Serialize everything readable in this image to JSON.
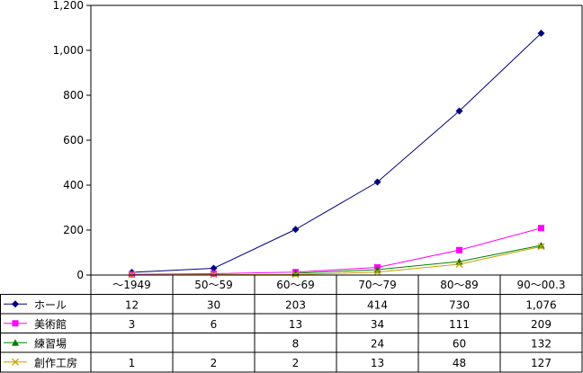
{
  "chart_data": {
    "type": "line",
    "categories": [
      "～1949",
      "50～59",
      "60～69",
      "70～79",
      "80～89",
      "90～00.3"
    ],
    "ylim": [
      0,
      1200
    ],
    "yticks": [
      0,
      200,
      400,
      600,
      800,
      1000,
      1200
    ],
    "ytick_labels": [
      "0",
      "200",
      "400",
      "600",
      "800",
      "1,000",
      "1,200"
    ],
    "grid": false,
    "legend": "data-table-below",
    "series": [
      {
        "name": "ホール",
        "color": "#000080",
        "marker": "diamond",
        "values": [
          12,
          30,
          203,
          414,
          730,
          1076
        ],
        "labels": [
          "12",
          "30",
          "203",
          "414",
          "730",
          "1,076"
        ]
      },
      {
        "name": "美術館",
        "color": "#ff00ff",
        "marker": "square",
        "values": [
          3,
          6,
          13,
          34,
          111,
          209
        ],
        "labels": [
          "3",
          "6",
          "13",
          "34",
          "111",
          "209"
        ]
      },
      {
        "name": "練習場",
        "color": "#008000",
        "marker": "triangle",
        "values": [
          null,
          null,
          8,
          24,
          60,
          132
        ],
        "labels": [
          "",
          "",
          "8",
          "24",
          "60",
          "132"
        ]
      },
      {
        "name": "創作工房",
        "color": "#c8a000",
        "marker": "x",
        "values": [
          1,
          2,
          2,
          13,
          48,
          127
        ],
        "labels": [
          "1",
          "2",
          "2",
          "13",
          "48",
          "127"
        ]
      }
    ]
  }
}
